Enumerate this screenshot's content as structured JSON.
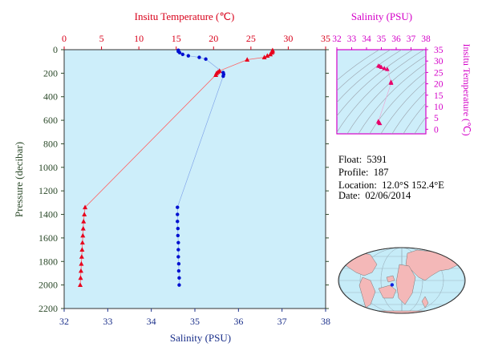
{
  "chart_data": [
    {
      "type": "scatter",
      "x_top_label": "Insitu Temperature (℃)",
      "x_bottom_label": "Salinity (PSU)",
      "ylabel": "Pressure (decibar)",
      "temp_ticks": [
        "0",
        "5",
        "10",
        "15",
        "20",
        "25",
        "30",
        "35"
      ],
      "sal_ticks": [
        "32",
        "33",
        "34",
        "35",
        "36",
        "37",
        "38"
      ],
      "pressure_ticks": [
        "0",
        "200",
        "400",
        "600",
        "800",
        "1000",
        "1200",
        "1400",
        "1600",
        "1800",
        "2000",
        "2200"
      ],
      "temp_lim": [
        0,
        35
      ],
      "sal_lim": [
        32,
        38
      ],
      "pressure_lim": [
        2200,
        0
      ],
      "series": [
        {
          "color": "#e8001c",
          "marker": "triangle",
          "points": [
            [
              27.9,
              5
            ],
            [
              27.9,
              15
            ],
            [
              27.8,
              25
            ],
            [
              27.6,
              40
            ],
            [
              27.2,
              52
            ],
            [
              26.8,
              65
            ],
            [
              24.5,
              85
            ],
            [
              20.8,
              180
            ],
            [
              20.6,
              190
            ],
            [
              20.4,
              200
            ],
            [
              20.3,
              215
            ],
            [
              2.8,
              1340
            ],
            [
              2.7,
              1400
            ],
            [
              2.6,
              1460
            ],
            [
              2.55,
              1520
            ],
            [
              2.5,
              1580
            ],
            [
              2.45,
              1640
            ],
            [
              2.4,
              1700
            ],
            [
              2.35,
              1760
            ],
            [
              2.3,
              1820
            ],
            [
              2.25,
              1880
            ],
            [
              2.2,
              1940
            ],
            [
              2.15,
              2000
            ]
          ]
        },
        {
          "color": "#0010d0",
          "marker": "dot",
          "points": [
            [
              34.62,
              5
            ],
            [
              34.62,
              15
            ],
            [
              34.65,
              25
            ],
            [
              34.72,
              40
            ],
            [
              34.85,
              52
            ],
            [
              35.1,
              65
            ],
            [
              35.25,
              80
            ],
            [
              35.65,
              195
            ],
            [
              35.66,
              210
            ],
            [
              35.65,
              225
            ],
            [
              34.6,
              1340
            ],
            [
              34.6,
              1400
            ],
            [
              34.6,
              1460
            ],
            [
              34.61,
              1520
            ],
            [
              34.61,
              1580
            ],
            [
              34.62,
              1640
            ],
            [
              34.62,
              1700
            ],
            [
              34.62,
              1760
            ],
            [
              34.63,
              1820
            ],
            [
              34.63,
              1880
            ],
            [
              34.64,
              1940
            ],
            [
              34.64,
              2000
            ]
          ]
        }
      ]
    },
    {
      "type": "scatter",
      "x_top_label": "Salinity (PSU)",
      "ylabel": "Insitu Temperature (℃)",
      "sal_ticks": [
        "32",
        "33",
        "34",
        "35",
        "36",
        "37",
        "38"
      ],
      "temp_ticks": [
        "0",
        "5",
        "10",
        "15",
        "20",
        "25",
        "30",
        "35"
      ],
      "sal_lim": [
        32,
        38
      ],
      "temp_lim": [
        -2,
        35
      ],
      "points": [
        [
          34.8,
          27.9
        ],
        [
          34.9,
          27.7
        ],
        [
          35.0,
          27.3
        ],
        [
          35.2,
          26.8
        ],
        [
          35.4,
          26.4
        ],
        [
          35.65,
          20.8
        ],
        [
          35.66,
          20.3
        ],
        [
          34.8,
          3.5
        ],
        [
          34.85,
          3.0
        ],
        [
          34.9,
          2.6
        ]
      ]
    }
  ],
  "info": {
    "float_label": "Float:",
    "float_value": "5391",
    "profile_label": "Profile:",
    "profile_value": "187",
    "location_label": "Location:",
    "location_value": "12.0°S  152.4°E",
    "date_label": "Date:",
    "date_value": "02/06/2014"
  },
  "map": {
    "float_lat": -12.0,
    "float_lon": 152.4,
    "ocean_color": "#c6ecf8",
    "land_color": "#f4b8b8"
  }
}
